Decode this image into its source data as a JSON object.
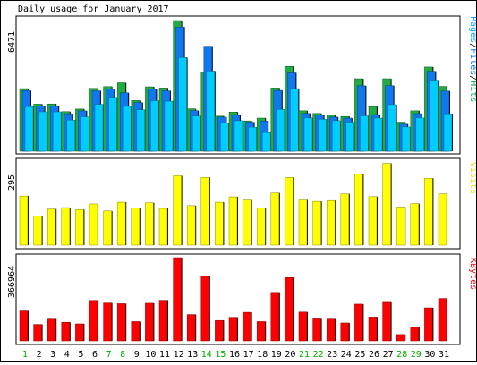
{
  "chart_data": [
    {
      "type": "bar",
      "title": "Daily usage for January 2017",
      "ymax_label": "6471",
      "legend": [
        {
          "text": "Pages",
          "color": "#00AAFF"
        },
        {
          "text": "/",
          "color": "#000000"
        },
        {
          "text": "Files",
          "color": "#0077EE"
        },
        {
          "text": "/",
          "color": "#000000"
        },
        {
          "text": "Hits",
          "color": "#00AA55"
        }
      ],
      "ylim": [
        0,
        6471
      ],
      "series": [
        {
          "name": "Hits",
          "color": "#22AA44",
          "values": [
            3100,
            2330,
            2340,
            1960,
            2090,
            3110,
            3200,
            3390,
            2510,
            3190,
            3130,
            6471,
            2100,
            3920,
            1740,
            1940,
            1500,
            1640,
            3130,
            4200,
            2000,
            1870,
            1780,
            1720,
            3590,
            2210,
            3590,
            1440,
            2000,
            4170,
            3210
          ]
        },
        {
          "name": "Files",
          "color": "#1177EE",
          "values": [
            3000,
            2230,
            2230,
            1860,
            2000,
            2990,
            3090,
            2890,
            2410,
            3090,
            2990,
            6150,
            2010,
            5200,
            1690,
            1800,
            1440,
            1500,
            3010,
            3880,
            1870,
            1800,
            1690,
            1640,
            3240,
            1810,
            3250,
            1340,
            1860,
            3960,
            2980
          ]
        },
        {
          "name": "Pages",
          "color": "#00CCFF",
          "values": [
            2210,
            1950,
            1950,
            1540,
            1700,
            2320,
            2670,
            2220,
            2050,
            2500,
            2480,
            4640,
            1740,
            3970,
            1410,
            1510,
            1190,
            920,
            2070,
            3100,
            1650,
            1580,
            1510,
            1440,
            1750,
            1640,
            2310,
            1200,
            1650,
            3520,
            1850
          ]
        }
      ]
    },
    {
      "type": "bar",
      "ymax_label": "295",
      "legend": [
        {
          "text": "Visits",
          "color": "#E0E000"
        }
      ],
      "ylim": [
        0,
        295
      ],
      "series": [
        {
          "name": "Visits",
          "color": "#FFFF00",
          "values": [
            174,
            103,
            128,
            133,
            126,
            146,
            121,
            152,
            132,
            150,
            130,
            246,
            140,
            240,
            152,
            171,
            160,
            131,
            185,
            240,
            160,
            155,
            158,
            182,
            252,
            172,
            290,
            135,
            147,
            237,
            182
          ]
        }
      ]
    },
    {
      "type": "bar",
      "ymax_label": "366964",
      "legend": [
        {
          "text": "KBytes",
          "color": "#FF0000"
        }
      ],
      "ylim": [
        0,
        366964
      ],
      "series": [
        {
          "name": "KBytes",
          "color": "#FF0000",
          "values": [
            132000,
            72500,
            96000,
            82000,
            75000,
            178500,
            167000,
            164000,
            85000,
            166000,
            179000,
            366964,
            116000,
            286000,
            90000,
            104000,
            126000,
            85000,
            214000,
            279000,
            127000,
            97000,
            96000,
            79000,
            162000,
            105000,
            170000,
            28000,
            62000,
            146000,
            187000
          ]
        }
      ],
      "categories": [
        "1",
        "2",
        "3",
        "4",
        "5",
        "6",
        "7",
        "8",
        "9",
        "10",
        "11",
        "12",
        "13",
        "14",
        "15",
        "16",
        "17",
        "18",
        "19",
        "20",
        "21",
        "22",
        "23",
        "24",
        "25",
        "26",
        "27",
        "28",
        "29",
        "30",
        "31"
      ],
      "weekend_days": [
        "1",
        "7",
        "8",
        "14",
        "15",
        "21",
        "22",
        "28",
        "29"
      ],
      "colors": {
        "weekday_label": "#000000",
        "weekend_label": "#00AA00"
      }
    }
  ]
}
